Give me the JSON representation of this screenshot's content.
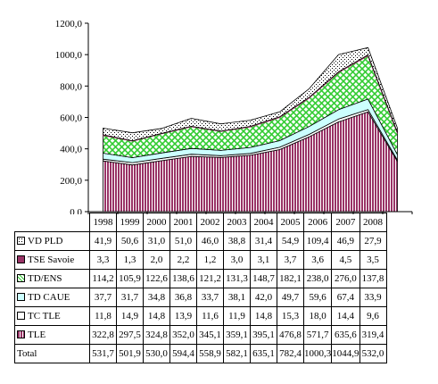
{
  "chart_data": {
    "type": "area",
    "stacked": true,
    "categories": [
      "1998",
      "1999",
      "2000",
      "2001",
      "2002",
      "2003",
      "2004",
      "2005",
      "2006",
      "2007",
      "2008"
    ],
    "ylim": [
      0,
      1200
    ],
    "yticks": [
      "0,0",
      "200,0",
      "400,0",
      "600,0",
      "800,0",
      "1000,0",
      "1200,0"
    ],
    "series": [
      {
        "name": "TLE",
        "values": [
          322.8,
          297.5,
          324.8,
          352.0,
          345.1,
          359.1,
          395.1,
          476.8,
          571.7,
          635.6,
          319.4
        ],
        "labels": [
          "322,8",
          "297,5",
          "324,8",
          "352,0",
          "345,1",
          "359,1",
          "395,1",
          "476,8",
          "571,7",
          "635,6",
          "319,4"
        ],
        "color": "#993366",
        "pattern": "vlines"
      },
      {
        "name": "TC TLE",
        "values": [
          11.8,
          14.9,
          14.8,
          13.9,
          11.6,
          11.9,
          14.8,
          15.3,
          18.0,
          14.4,
          9.6
        ],
        "labels": [
          "11,8",
          "14,9",
          "14,8",
          "13,9",
          "11,6",
          "11,9",
          "14,8",
          "15,3",
          "18,0",
          "14,4",
          "9,6"
        ],
        "color": "#ffffff",
        "pattern": "solid"
      },
      {
        "name": "TD CAUE",
        "values": [
          37.7,
          31.7,
          34.8,
          36.8,
          33.7,
          38.1,
          42.0,
          49.7,
          59.6,
          67.4,
          33.9
        ],
        "labels": [
          "37,7",
          "31,7",
          "34,8",
          "36,8",
          "33,7",
          "38,1",
          "42,0",
          "49,7",
          "59,6",
          "67,4",
          "33,9"
        ],
        "color": "#ccffff",
        "pattern": "solid"
      },
      {
        "name": "TD/ENS",
        "values": [
          114.2,
          105.9,
          122.6,
          138.6,
          121.2,
          131.3,
          148.7,
          182.1,
          238.0,
          276.0,
          137.8
        ],
        "labels": [
          "114,2",
          "105,9",
          "122,6",
          "138,6",
          "121,2",
          "131,3",
          "148,7",
          "182,1",
          "238,0",
          "276,0",
          "137,8"
        ],
        "color": "#33cc33",
        "pattern": "cross"
      },
      {
        "name": "TSE Savoie",
        "values": [
          3.3,
          1.3,
          2.0,
          2.2,
          1.2,
          3.0,
          3.1,
          3.7,
          3.6,
          4.5,
          3.5
        ],
        "labels": [
          "3,3",
          "1,3",
          "2,0",
          "2,2",
          "1,2",
          "3,0",
          "3,1",
          "3,7",
          "3,6",
          "4,5",
          "3,5"
        ],
        "color": "#993366",
        "pattern": "solid"
      },
      {
        "name": "VD PLD",
        "values": [
          41.9,
          50.6,
          31.0,
          51.0,
          46.0,
          38.8,
          31.4,
          54.9,
          109.4,
          46.9,
          27.9
        ],
        "labels": [
          "41,9",
          "50,6",
          "31,0",
          "51,0",
          "46,0",
          "38,8",
          "31,4",
          "54,9",
          "109,4",
          "46,9",
          "27,9"
        ],
        "color": "#ffffff",
        "pattern": "dots"
      }
    ],
    "table_order": [
      "VD PLD",
      "TSE Savoie",
      "TD/ENS",
      "TD CAUE",
      "TC TLE",
      "TLE"
    ],
    "total": {
      "name": "Total",
      "values": [
        531.7,
        501.9,
        530.0,
        594.4,
        558.9,
        582.1,
        635.1,
        782.4,
        1000.3,
        1044.9,
        532.0
      ],
      "labels": [
        "531,7",
        "501,9",
        "530,0",
        "594,4",
        "558,9",
        "582,1",
        "635,1",
        "782,4",
        "1000,3",
        "1044,9",
        "532,0"
      ]
    }
  }
}
